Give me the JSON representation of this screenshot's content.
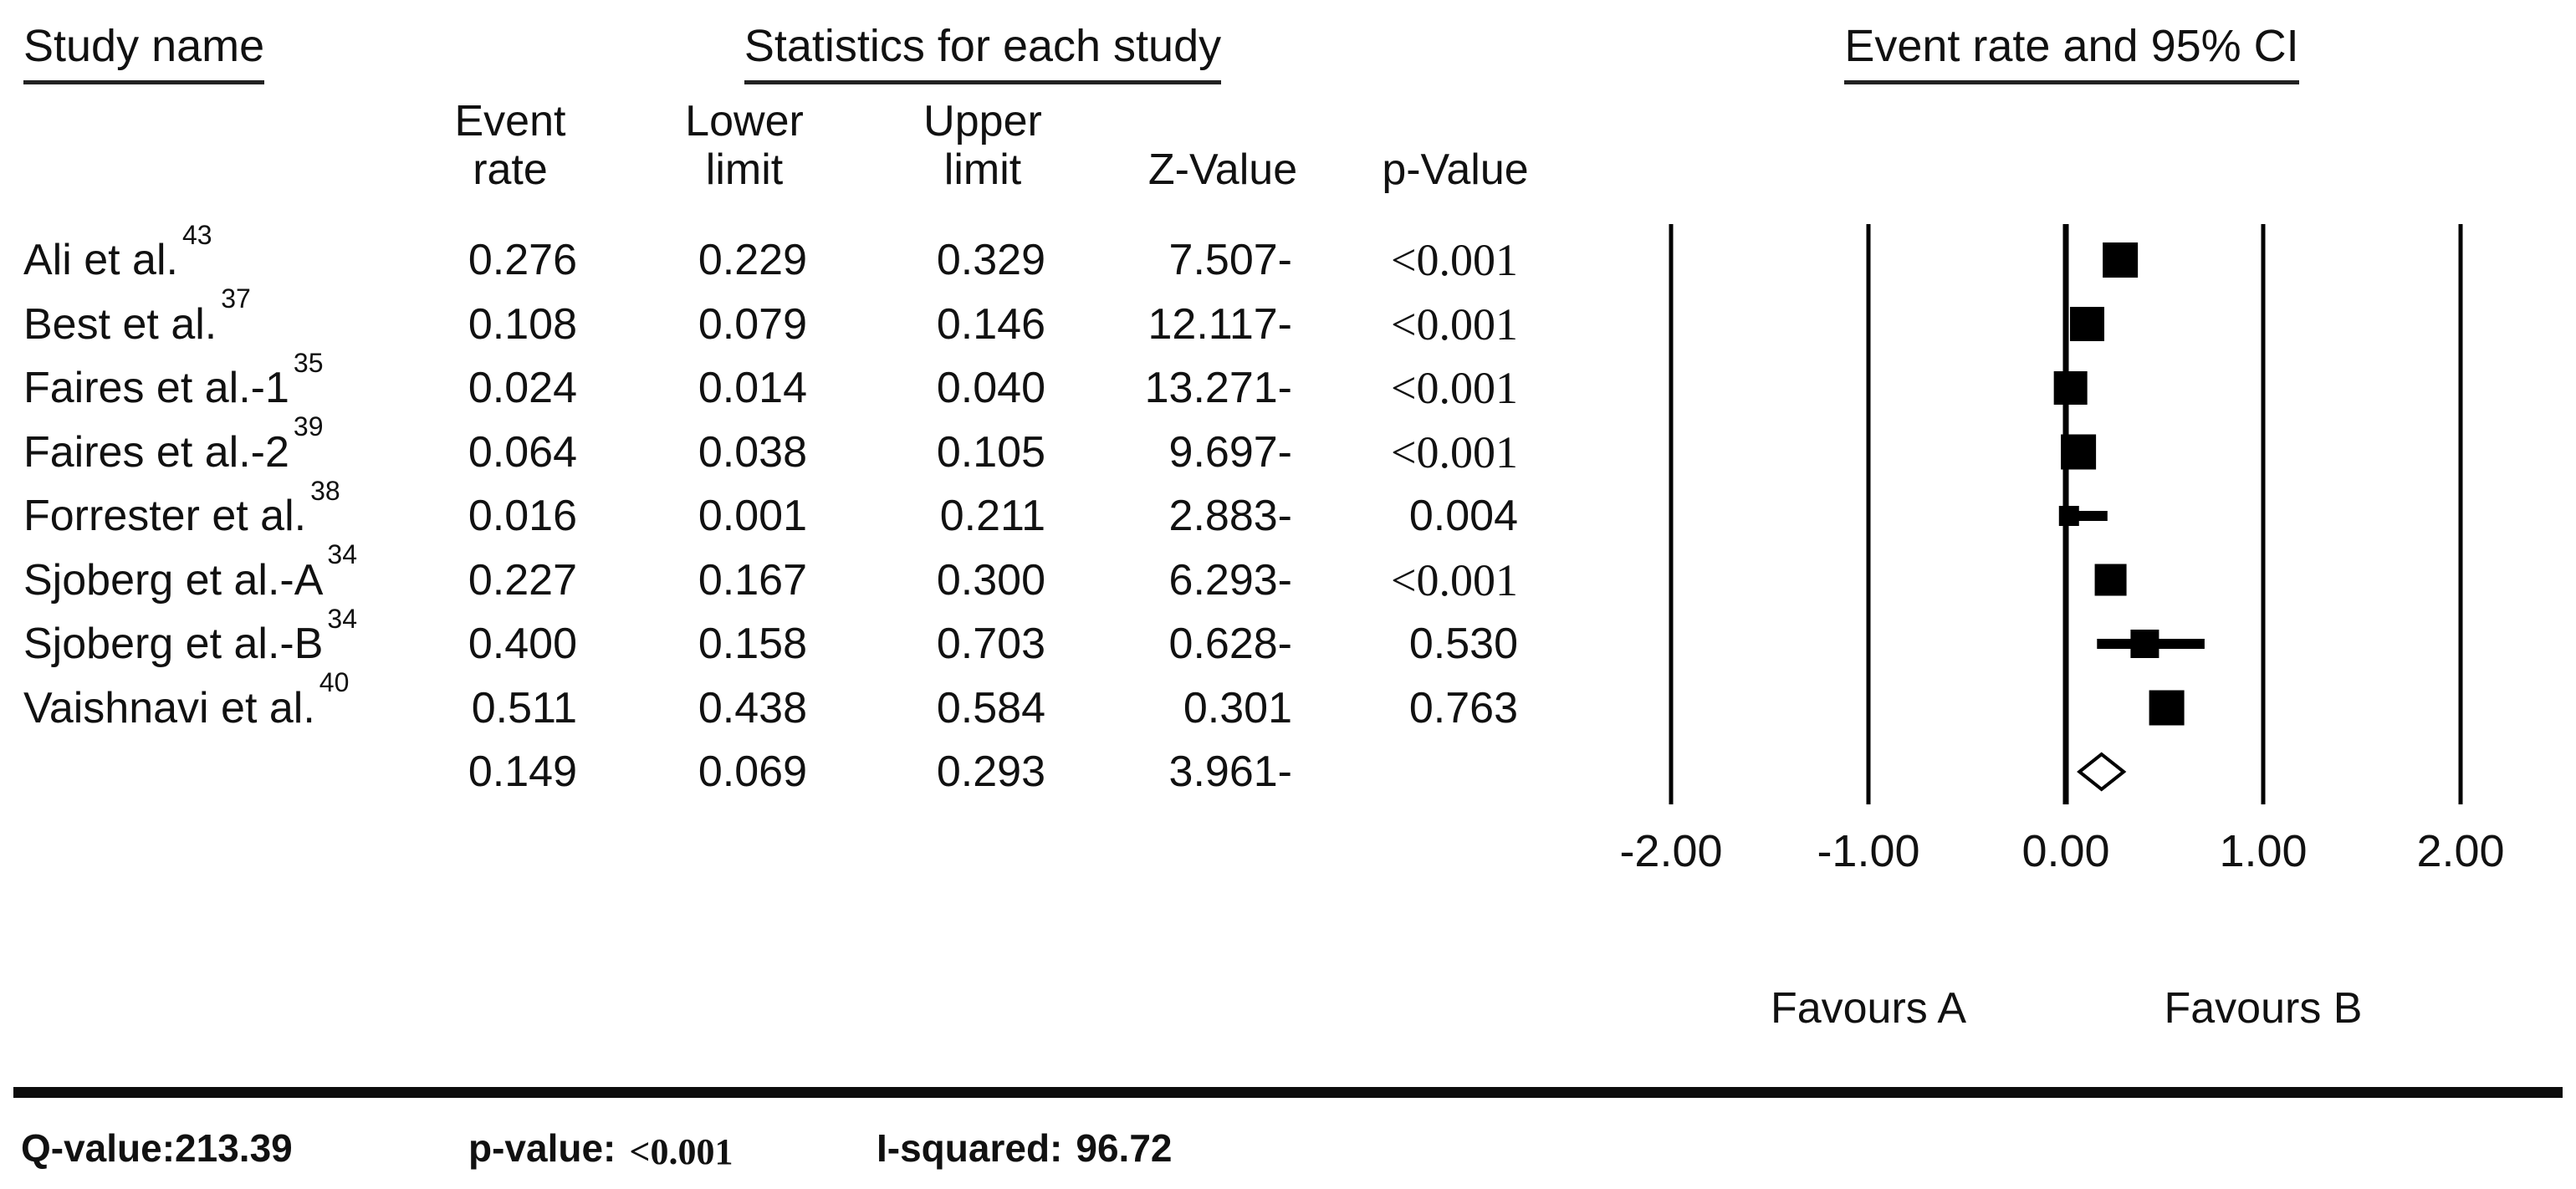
{
  "figure": {
    "study_name_title": "Study name",
    "stats_title": "Statistics for each study",
    "plot_title": "Event rate and 95% CI",
    "col_headers": {
      "event_l1": "Event",
      "event_l2": "rate",
      "lower_l1": "Lower",
      "lower_l2": "limit",
      "upper_l1": "Upper",
      "upper_l2": "limit",
      "z": "Z-Value",
      "p": "p-Value"
    }
  },
  "chart_data": {
    "type": "forest",
    "title": "Event rate and 95% CI",
    "x_tick_labels": [
      "-2.00",
      "-1.00",
      "0.00",
      "1.00",
      "2.00"
    ],
    "x_tick_values": [
      -2,
      -1,
      0,
      1,
      2
    ],
    "xlim": [
      -2.5,
      2.5
    ],
    "grid": "vertical-lines-at-ticks",
    "favours_left": "Favours A",
    "favours_right": "Favours B",
    "columns": [
      "Event rate",
      "Lower limit",
      "Upper limit",
      "Z-Value",
      "p-Value"
    ],
    "studies": [
      {
        "name": "Ali et al.",
        "ref": "43",
        "event_rate": 0.276,
        "lower": 0.229,
        "upper": 0.329,
        "event_rate_label": "0.276",
        "lower_label": "0.229",
        "upper_label": "0.329",
        "z_value": "7.507-",
        "p_value": "<0.001",
        "marker_size": 42
      },
      {
        "name": "Best et al.",
        "ref": "37",
        "event_rate": 0.108,
        "lower": 0.079,
        "upper": 0.146,
        "event_rate_label": "0.108",
        "lower_label": "0.079",
        "upper_label": "0.146",
        "z_value": "12.117-",
        "p_value": "<0.001",
        "marker_size": 41
      },
      {
        "name": "Faires et al.-1",
        "ref": "35",
        "event_rate": 0.024,
        "lower": 0.014,
        "upper": 0.04,
        "event_rate_label": "0.024",
        "lower_label": "0.014",
        "upper_label": "0.040",
        "z_value": "13.271-",
        "p_value": "<0.001",
        "marker_size": 40
      },
      {
        "name": "Faires et al.-2",
        "ref": "39",
        "event_rate": 0.064,
        "lower": 0.038,
        "upper": 0.105,
        "event_rate_label": "0.064",
        "lower_label": "0.038",
        "upper_label": "0.105",
        "z_value": "9.697-",
        "p_value": "<0.001",
        "marker_size": 42
      },
      {
        "name": "Forrester et al.",
        "ref": "38",
        "event_rate": 0.016,
        "lower": 0.001,
        "upper": 0.211,
        "event_rate_label": "0.016",
        "lower_label": "0.001",
        "upper_label": "0.211",
        "z_value": "2.883-",
        "p_value": "0.004",
        "marker_size": 24
      },
      {
        "name": "Sjoberg et al.-A",
        "ref": "34",
        "event_rate": 0.227,
        "lower": 0.167,
        "upper": 0.3,
        "event_rate_label": "0.227",
        "lower_label": "0.167",
        "upper_label": "0.300",
        "z_value": "6.293-",
        "p_value": "<0.001",
        "marker_size": 38
      },
      {
        "name": "Sjoberg et al.-B",
        "ref": "34",
        "event_rate": 0.4,
        "lower": 0.158,
        "upper": 0.703,
        "event_rate_label": "0.400",
        "lower_label": "0.158",
        "upper_label": "0.703",
        "z_value": "0.628-",
        "p_value": "0.530",
        "marker_size": 34
      },
      {
        "name": "Vaishnavi et al.",
        "ref": "40",
        "event_rate": 0.511,
        "lower": 0.438,
        "upper": 0.584,
        "event_rate_label": "0.511",
        "lower_label": "0.438",
        "upper_label": "0.584",
        "z_value": "0.301",
        "p_value": "0.763",
        "marker_size": 42
      }
    ],
    "summary": {
      "marker": "open-diamond",
      "event_rate": 0.149,
      "lower": 0.069,
      "upper": 0.293,
      "event_rate_label": "0.149",
      "lower_label": "0.069",
      "upper_label": "0.293",
      "z_value": "3.961-",
      "p_value": ""
    }
  },
  "footer": {
    "q_label": "Q-value:",
    "q_value": "213.39",
    "p_label": "p-value:",
    "p_value": "<0.001",
    "i_label": "I-squared:",
    "i_value": "96.72"
  },
  "colors": {
    "text": "#111111",
    "marker": "#000000",
    "gridline": "#000000",
    "underline": "#222222",
    "rule": "#0c0c0c",
    "background": "#ffffff"
  }
}
